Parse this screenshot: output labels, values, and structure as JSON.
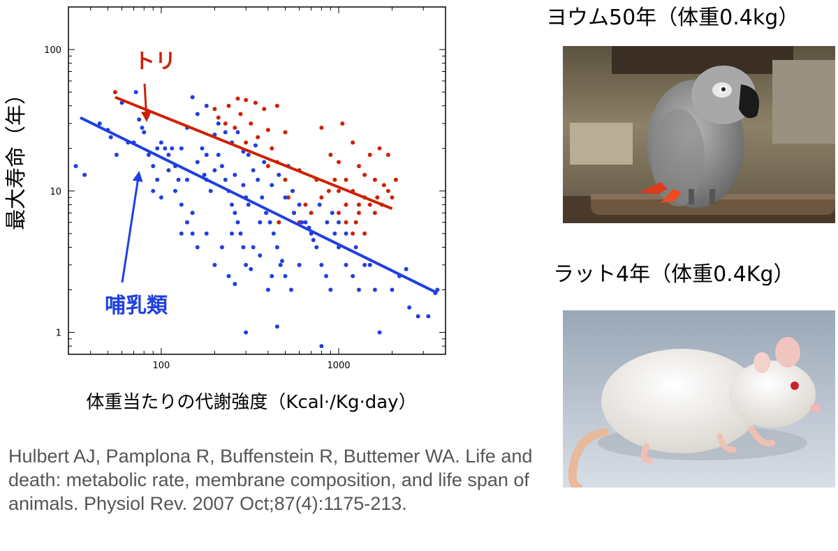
{
  "chart_data": {
    "type": "scatter",
    "xscale": "log",
    "yscale": "log",
    "xlim": [
      30,
      4000
    ],
    "ylim": [
      0.7,
      200
    ],
    "x_ticks": [
      100,
      1000
    ],
    "x_tick_labels": [
      "100",
      "1000"
    ],
    "y_ticks": [
      1,
      10,
      100
    ],
    "y_tick_labels": [
      "1",
      "10",
      "100"
    ],
    "xlabel": "体重当たりの代謝強度（Kcal·/Kg·day）",
    "ylabel": "最大寿命（年）",
    "grid": false,
    "series": [
      {
        "name": "トリ",
        "color": "#cc2200",
        "points": [
          [
            55,
            50
          ],
          [
            270,
            45
          ],
          [
            300,
            44
          ],
          [
            240,
            40
          ],
          [
            340,
            42
          ],
          [
            200,
            38
          ],
          [
            380,
            38
          ],
          [
            450,
            40
          ],
          [
            280,
            35
          ],
          [
            210,
            33
          ],
          [
            230,
            30
          ],
          [
            320,
            30
          ],
          [
            260,
            28
          ],
          [
            400,
            27
          ],
          [
            500,
            26
          ],
          [
            350,
            24
          ],
          [
            300,
            22
          ],
          [
            420,
            20
          ],
          [
            800,
            28
          ],
          [
            1050,
            30
          ],
          [
            1200,
            22
          ],
          [
            900,
            18
          ],
          [
            1000,
            16
          ],
          [
            1500,
            18
          ],
          [
            1700,
            20
          ],
          [
            1900,
            18
          ],
          [
            2100,
            12
          ],
          [
            1300,
            15
          ],
          [
            1400,
            13
          ],
          [
            1100,
            12
          ],
          [
            1600,
            12
          ],
          [
            1800,
            11
          ],
          [
            1200,
            10
          ],
          [
            1000,
            10
          ],
          [
            1400,
            9
          ],
          [
            1500,
            8
          ],
          [
            1650,
            9
          ],
          [
            1900,
            10
          ],
          [
            2000,
            9
          ],
          [
            1750,
            8
          ],
          [
            1100,
            8
          ],
          [
            1300,
            7
          ],
          [
            950,
            12
          ],
          [
            880,
            10
          ],
          [
            1250,
            6
          ],
          [
            1400,
            5
          ],
          [
            1200,
            5
          ],
          [
            600,
            14
          ],
          [
            500,
            12
          ],
          [
            550,
            10
          ],
          [
            650,
            8
          ],
          [
            450,
            16
          ],
          [
            700,
            7
          ],
          [
            400,
            15
          ],
          [
            750,
            12
          ],
          [
            600,
            6
          ],
          [
            460,
            6
          ],
          [
            520,
            9
          ],
          [
            560,
            7
          ],
          [
            800,
            9
          ],
          [
            1300,
            8
          ],
          [
            1600,
            7
          ],
          [
            1100,
            6
          ],
          [
            1000,
            7
          ]
        ],
        "fit": [
          [
            55,
            46
          ],
          [
            2000,
            7.5
          ]
        ]
      },
      {
        "name": "哺乳類",
        "color": "#1f3fe0",
        "points": [
          [
            33,
            15
          ],
          [
            37,
            13
          ],
          [
            45,
            30
          ],
          [
            50,
            27
          ],
          [
            52,
            24
          ],
          [
            56,
            18
          ],
          [
            60,
            42
          ],
          [
            65,
            22
          ],
          [
            70,
            22
          ],
          [
            72,
            50
          ],
          [
            75,
            32
          ],
          [
            78,
            28
          ],
          [
            80,
            26
          ],
          [
            85,
            18
          ],
          [
            90,
            15
          ],
          [
            95,
            20
          ],
          [
            100,
            22
          ],
          [
            105,
            20
          ],
          [
            110,
            18
          ],
          [
            115,
            20
          ],
          [
            120,
            15
          ],
          [
            125,
            12
          ],
          [
            130,
            20
          ],
          [
            140,
            28
          ],
          [
            150,
            46
          ],
          [
            160,
            35
          ],
          [
            170,
            20
          ],
          [
            180,
            40
          ],
          [
            120,
            10
          ],
          [
            130,
            8
          ],
          [
            140,
            6
          ],
          [
            150,
            5
          ],
          [
            160,
            4
          ],
          [
            180,
            12
          ],
          [
            190,
            10
          ],
          [
            200,
            25
          ],
          [
            210,
            18
          ],
          [
            220,
            15
          ],
          [
            230,
            12
          ],
          [
            240,
            10
          ],
          [
            250,
            8
          ],
          [
            260,
            7
          ],
          [
            270,
            6
          ],
          [
            280,
            5
          ],
          [
            290,
            4
          ],
          [
            300,
            3
          ],
          [
            310,
            18
          ],
          [
            330,
            14
          ],
          [
            350,
            12
          ],
          [
            370,
            9
          ],
          [
            390,
            7
          ],
          [
            410,
            6
          ],
          [
            430,
            5
          ],
          [
            450,
            4
          ],
          [
            470,
            3
          ],
          [
            500,
            2.5
          ],
          [
            520,
            15
          ],
          [
            550,
            10
          ],
          [
            600,
            8
          ],
          [
            650,
            6
          ],
          [
            700,
            5
          ],
          [
            750,
            4
          ],
          [
            800,
            3
          ],
          [
            850,
            2.5
          ],
          [
            900,
            2
          ],
          [
            950,
            5
          ],
          [
            1000,
            4
          ],
          [
            1100,
            3
          ],
          [
            1200,
            2.5
          ],
          [
            1300,
            2
          ],
          [
            1400,
            3
          ],
          [
            1500,
            3
          ],
          [
            1600,
            2
          ],
          [
            2000,
            2
          ],
          [
            2200,
            2.5
          ],
          [
            2500,
            1.5
          ],
          [
            2800,
            1.3
          ],
          [
            3200,
            1.3
          ],
          [
            3500,
            1.9
          ],
          [
            3600,
            2
          ],
          [
            2400,
            2.8
          ],
          [
            300,
            1
          ],
          [
            450,
            1.1
          ],
          [
            800,
            0.8
          ],
          [
            1700,
            1
          ],
          [
            180,
            5
          ],
          [
            200,
            3
          ],
          [
            220,
            4
          ],
          [
            240,
            2.5
          ],
          [
            260,
            2.2
          ],
          [
            320,
            2.8
          ],
          [
            360,
            3.5
          ],
          [
            400,
            2
          ],
          [
            420,
            2.5
          ],
          [
            480,
            3.2
          ],
          [
            540,
            2
          ],
          [
            600,
            3
          ],
          [
            250,
            22
          ],
          [
            270,
            26
          ],
          [
            290,
            19
          ],
          [
            340,
            21
          ],
          [
            380,
            16
          ],
          [
            420,
            11
          ],
          [
            460,
            13
          ],
          [
            500,
            9
          ],
          [
            560,
            7
          ],
          [
            620,
            6
          ],
          [
            680,
            5.5
          ],
          [
            720,
            4.5
          ],
          [
            780,
            8
          ],
          [
            860,
            6
          ],
          [
            920,
            7
          ],
          [
            1000,
            6
          ],
          [
            1100,
            5
          ],
          [
            1250,
            4
          ],
          [
            210,
            30
          ],
          [
            230,
            26
          ],
          [
            160,
            16
          ],
          [
            175,
            13
          ],
          [
            140,
            12
          ],
          [
            110,
            14
          ],
          [
            100,
            9
          ],
          [
            95,
            12
          ],
          [
            90,
            10
          ],
          [
            130,
            5
          ],
          [
            150,
            7
          ],
          [
            250,
            5
          ],
          [
            330,
            4
          ],
          [
            300,
            9
          ],
          [
            360,
            6
          ],
          [
            260,
            13
          ],
          [
            290,
            11
          ],
          [
            310,
            8
          ],
          [
            200,
            14
          ],
          [
            180,
            18
          ]
        ],
        "fit": [
          [
            35,
            33
          ],
          [
            3600,
            1.9
          ]
        ]
      }
    ],
    "annotations": [
      {
        "text": "トリ",
        "color": "#cc2200",
        "target_series": "トリ"
      },
      {
        "text": "哺乳類",
        "color": "#1f3fe0",
        "target_series": "哺乳類"
      }
    ]
  },
  "photos": {
    "parrot_title": "ヨウム50年（体重0.4kg）",
    "rat_title": "ラット4年（体重0.4Kg）"
  },
  "citation": "Hulbert AJ, Pamplona R, Buffenstein R, Buttemer WA. Life and death: metabolic rate, membrane composition, and life span of animals. Physiol Rev. 2007 Oct;87(4):1175-213."
}
